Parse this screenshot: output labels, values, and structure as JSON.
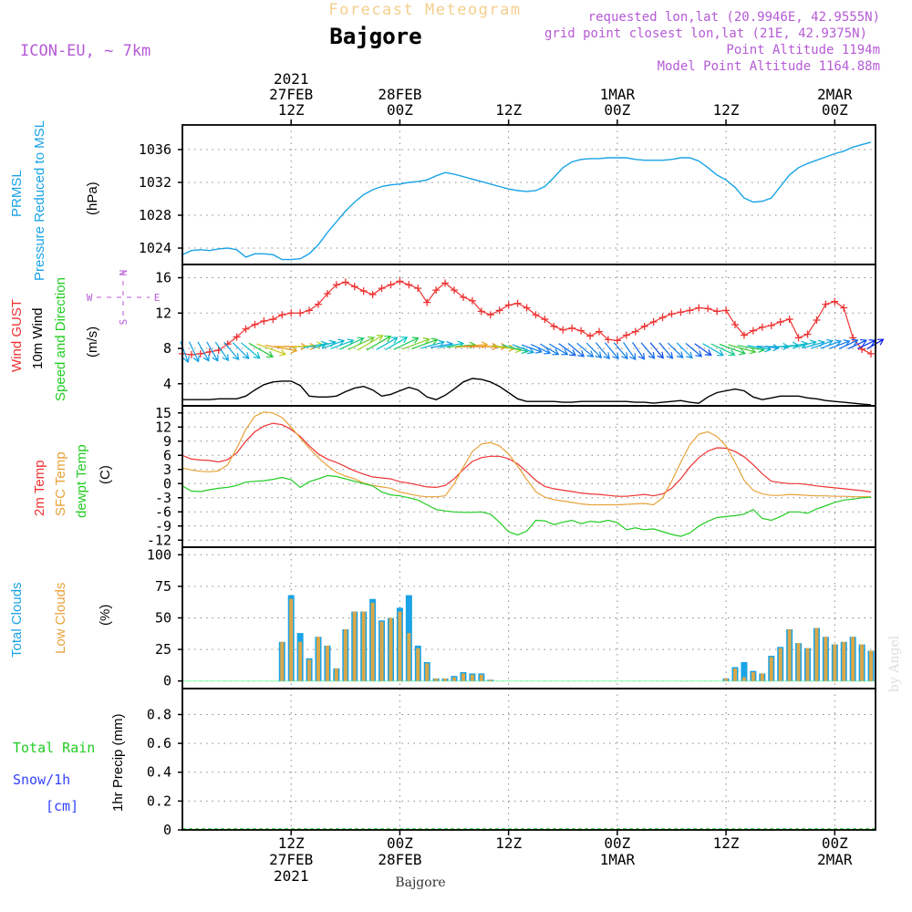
{
  "header": {
    "subtitle": "Forecast Meteogram",
    "location": "Bajgore",
    "model": "ICON-EU, ~ 7km",
    "requested": "requested lon,lat (20.9946E, 42.9555N)",
    "grid_point": "grid point closest lon,lat (21E, 42.9375N)",
    "point_alt": "Point Altitude 1194m",
    "model_alt": "Model Point Altitude 1164.88m",
    "footer_location": "Bajgore",
    "watermark": "by Angel"
  },
  "colors": {
    "pressure": "#1aa3e6",
    "gust": "#ee3333",
    "wind": "#000000",
    "temp2m": "#ee3333",
    "sfc": "#e8a23a",
    "dewpt": "#22cc22",
    "total_cloud": "#1aa3e6",
    "low_cloud": "#d9a84a",
    "rain": "#22cc22",
    "snow": "#3344ff",
    "purple": "#b65ad6"
  },
  "time_axis": {
    "top": [
      {
        "hour": 12,
        "lines": [
          "2021",
          "27FEB",
          "12Z"
        ]
      },
      {
        "hour": 24,
        "lines": [
          "28FEB",
          "00Z"
        ]
      },
      {
        "hour": 36,
        "lines": [
          "12Z"
        ]
      },
      {
        "hour": 48,
        "lines": [
          "1MAR",
          "00Z"
        ]
      },
      {
        "hour": 60,
        "lines": [
          "12Z"
        ]
      },
      {
        "hour": 72,
        "lines": [
          "2MAR",
          "00Z"
        ]
      }
    ],
    "bottom": [
      {
        "hour": 12,
        "lines": [
          "12Z",
          "27FEB",
          "2021"
        ]
      },
      {
        "hour": 24,
        "lines": [
          "00Z",
          "28FEB"
        ]
      },
      {
        "hour": 36,
        "lines": [
          "12Z"
        ]
      },
      {
        "hour": 48,
        "lines": [
          "00Z",
          "1MAR"
        ]
      },
      {
        "hour": 60,
        "lines": [
          "12Z"
        ]
      },
      {
        "hour": 72,
        "lines": [
          "00Z",
          "2MAR"
        ]
      }
    ],
    "start_hour": 0,
    "end_hour": 76.5
  },
  "chart_data": [
    {
      "type": "line",
      "panel": "pressure",
      "labels": [
        "PRMSL",
        "Pressure Reduced to MSL"
      ],
      "unit": "(hPa)",
      "ylim": [
        1022,
        1039
      ],
      "yticks": [
        1024,
        1028,
        1032,
        1036
      ],
      "x": [
        0,
        1,
        2,
        3,
        4,
        5,
        6,
        7,
        8,
        9,
        10,
        11,
        12,
        13,
        14,
        15,
        16,
        17,
        18,
        19,
        20,
        21,
        22,
        23,
        24,
        25,
        26,
        27,
        28,
        29,
        30,
        31,
        32,
        33,
        34,
        35,
        36,
        37,
        38,
        39,
        40,
        41,
        42,
        43,
        44,
        45,
        46,
        47,
        48,
        49,
        50,
        51,
        52,
        53,
        54,
        55,
        56,
        57,
        58,
        59,
        60,
        61,
        62,
        63,
        64,
        65,
        66,
        67,
        68,
        69,
        70,
        71,
        72,
        73,
        74,
        75,
        76
      ],
      "series": [
        {
          "name": "PRMSL",
          "values": [
            1023.2,
            1023.7,
            1023.8,
            1023.7,
            1023.9,
            1024.0,
            1023.8,
            1022.9,
            1023.3,
            1023.3,
            1023.2,
            1022.6,
            1022.6,
            1022.7,
            1023.3,
            1024.4,
            1025.9,
            1027.2,
            1028.5,
            1029.6,
            1030.5,
            1031.1,
            1031.5,
            1031.7,
            1031.8,
            1032.0,
            1032.1,
            1032.3,
            1032.8,
            1033.2,
            1033.0,
            1032.7,
            1032.4,
            1032.1,
            1031.8,
            1031.5,
            1031.2,
            1031.0,
            1030.9,
            1031.0,
            1031.5,
            1032.6,
            1033.8,
            1034.5,
            1034.8,
            1034.9,
            1034.9,
            1035.0,
            1035.0,
            1035.0,
            1034.8,
            1034.7,
            1034.7,
            1034.7,
            1034.8,
            1035.0,
            1035.0,
            1034.6,
            1033.8,
            1032.9,
            1032.3,
            1031.4,
            1030.1,
            1029.6,
            1029.7,
            1030.1,
            1031.5,
            1032.9,
            1033.8,
            1034.3,
            1034.7,
            1035.1,
            1035.5,
            1035.8,
            1036.3,
            1036.6,
            1036.9
          ]
        }
      ]
    },
    {
      "type": "line",
      "panel": "wind",
      "labels": [
        "Wind GUST",
        "10m Wind",
        "Speed and Direction"
      ],
      "unit": "(m/s)",
      "compass": [
        "N",
        "E",
        "S",
        "W"
      ],
      "ylim": [
        1.5,
        17.5
      ],
      "yticks": [
        4,
        8,
        12,
        16
      ],
      "x": [
        0,
        1,
        2,
        3,
        4,
        5,
        6,
        7,
        8,
        9,
        10,
        11,
        12,
        13,
        14,
        15,
        16,
        17,
        18,
        19,
        20,
        21,
        22,
        23,
        24,
        25,
        26,
        27,
        28,
        29,
        30,
        31,
        32,
        33,
        34,
        35,
        36,
        37,
        38,
        39,
        40,
        41,
        42,
        43,
        44,
        45,
        46,
        47,
        48,
        49,
        50,
        51,
        52,
        53,
        54,
        55,
        56,
        57,
        58,
        59,
        60,
        61,
        62,
        63,
        64,
        65,
        66,
        67,
        68,
        69,
        70,
        71,
        72,
        73,
        74,
        75,
        76
      ],
      "series": [
        {
          "name": "Wind GUST",
          "values": [
            7.4,
            7.3,
            7.4,
            7.6,
            7.8,
            8.5,
            9.3,
            10.2,
            10.7,
            11.1,
            11.3,
            11.8,
            12.0,
            12.0,
            12.3,
            13.0,
            14.2,
            15.2,
            15.5,
            15.0,
            14.5,
            14.1,
            14.8,
            15.2,
            15.6,
            15.2,
            14.8,
            13.2,
            14.6,
            15.4,
            14.6,
            13.8,
            13.4,
            12.2,
            11.8,
            12.3,
            12.9,
            13.1,
            12.6,
            11.8,
            11.3,
            10.5,
            10.1,
            10.3,
            10.0,
            9.4,
            9.9,
            9.0,
            8.9,
            9.5,
            9.9,
            10.5,
            11.0,
            11.5,
            11.9,
            12.1,
            12.3,
            12.6,
            12.5,
            12.2,
            12.3,
            10.7,
            9.5,
            10.0,
            10.4,
            10.6,
            11.0,
            11.3,
            9.2,
            9.6,
            11.2,
            13.0,
            13.3,
            12.6,
            9.2,
            7.9,
            7.4
          ]
        },
        {
          "name": "10m Wind",
          "values": [
            2.2,
            2.2,
            2.2,
            2.2,
            2.3,
            2.3,
            2.3,
            2.6,
            3.3,
            3.9,
            4.2,
            4.3,
            4.3,
            3.8,
            2.6,
            2.5,
            2.5,
            2.6,
            3.1,
            3.5,
            3.7,
            3.3,
            2.6,
            2.8,
            3.2,
            3.6,
            3.3,
            2.5,
            2.2,
            2.7,
            3.4,
            4.2,
            4.6,
            4.5,
            4.2,
            3.7,
            3.0,
            2.3,
            2.0,
            2.0,
            2.0,
            2.0,
            1.9,
            1.9,
            2.0,
            2.0,
            2.0,
            2.0,
            2.0,
            2.0,
            1.9,
            1.9,
            1.8,
            1.9,
            2.0,
            2.1,
            1.9,
            1.8,
            2.5,
            3.0,
            3.2,
            3.4,
            3.2,
            2.5,
            2.2,
            2.4,
            2.6,
            2.6,
            2.6,
            2.4,
            2.3,
            2.1,
            2.0,
            1.9,
            1.8,
            1.7,
            1.6
          ]
        }
      ],
      "arrow_dirs": [
        340,
        335,
        330,
        330,
        325,
        320,
        315,
        310,
        300,
        290,
        280,
        270,
        270,
        265,
        260,
        255,
        250,
        250,
        245,
        245,
        240,
        240,
        240,
        240,
        245,
        250,
        250,
        255,
        260,
        260,
        265,
        265,
        270,
        270,
        275,
        280,
        285,
        290,
        290,
        295,
        300,
        300,
        305,
        310,
        310,
        315,
        320,
        320,
        320,
        325,
        325,
        320,
        320,
        320,
        315,
        315,
        310,
        305,
        300,
        295,
        290,
        285,
        280,
        280,
        275,
        270,
        265,
        260,
        255,
        255,
        250,
        250,
        250,
        245,
        245,
        245,
        240
      ]
    },
    {
      "type": "line",
      "panel": "temperature",
      "labels": [
        "2m Temp",
        "SFC Temp",
        "dewpt Temp"
      ],
      "unit": "(C)",
      "ylim": [
        -13.5,
        16.5
      ],
      "yticks": [
        -12,
        -9,
        -6,
        -3,
        0,
        3,
        6,
        9,
        12,
        15
      ],
      "x": [
        0,
        1,
        2,
        3,
        4,
        5,
        6,
        7,
        8,
        9,
        10,
        11,
        12,
        13,
        14,
        15,
        16,
        17,
        18,
        19,
        20,
        21,
        22,
        23,
        24,
        25,
        26,
        27,
        28,
        29,
        30,
        31,
        32,
        33,
        34,
        35,
        36,
        37,
        38,
        39,
        40,
        41,
        42,
        43,
        44,
        45,
        46,
        47,
        48,
        49,
        50,
        51,
        52,
        53,
        54,
        55,
        56,
        57,
        58,
        59,
        60,
        61,
        62,
        63,
        64,
        65,
        66,
        67,
        68,
        69,
        70,
        71,
        72,
        73,
        74,
        75,
        76
      ],
      "series": [
        {
          "name": "2m Temp",
          "values": [
            6.0,
            5.2,
            5.0,
            4.9,
            4.6,
            5.1,
            6.5,
            9.0,
            11.0,
            12.2,
            12.8,
            12.5,
            11.5,
            10.0,
            8.0,
            6.3,
            5.2,
            4.5,
            3.6,
            2.7,
            2.0,
            1.4,
            1.2,
            1.0,
            0.4,
            0.1,
            -0.3,
            -0.7,
            -0.8,
            -0.4,
            1.0,
            3.0,
            4.7,
            5.5,
            5.8,
            5.8,
            5.3,
            4.2,
            2.5,
            0.7,
            -0.6,
            -1.1,
            -1.4,
            -1.7,
            -2.0,
            -2.2,
            -2.3,
            -2.5,
            -2.7,
            -2.7,
            -2.5,
            -2.3,
            -2.6,
            -2.2,
            -1.0,
            1.0,
            3.5,
            5.5,
            6.9,
            7.6,
            7.5,
            6.8,
            5.7,
            4.0,
            2.1,
            0.5,
            0.2,
            0.0,
            0.0,
            -0.2,
            -0.5,
            -0.7,
            -0.9,
            -1.1,
            -1.3,
            -1.5,
            -1.8
          ]
        },
        {
          "name": "SFC Temp",
          "values": [
            3.3,
            2.9,
            2.6,
            2.5,
            2.7,
            4.0,
            7.5,
            11.5,
            14.3,
            15.2,
            15.0,
            14.0,
            12.0,
            9.7,
            7.5,
            5.5,
            3.8,
            2.4,
            1.6,
            1.0,
            0.1,
            -0.4,
            -0.7,
            -1.0,
            -1.8,
            -2.2,
            -2.6,
            -2.8,
            -2.8,
            -2.6,
            0.0,
            3.5,
            6.8,
            8.4,
            8.7,
            8.0,
            6.3,
            3.7,
            0.9,
            -1.7,
            -2.9,
            -3.4,
            -3.7,
            -4.0,
            -4.3,
            -4.5,
            -4.5,
            -4.5,
            -4.5,
            -4.4,
            -4.3,
            -4.2,
            -4.5,
            -3.0,
            0.5,
            4.5,
            8.2,
            10.5,
            11.0,
            10.0,
            8.0,
            4.5,
            0.7,
            -1.4,
            -2.2,
            -2.5,
            -2.5,
            -2.3,
            -2.4,
            -2.5,
            -2.6,
            -2.6,
            -2.7,
            -2.7,
            -2.8,
            -2.8,
            -2.8
          ]
        },
        {
          "name": "dewpt Temp",
          "values": [
            -0.5,
            -1.6,
            -1.7,
            -1.3,
            -1.0,
            -0.8,
            -0.4,
            0.3,
            0.5,
            0.6,
            0.9,
            1.3,
            0.8,
            -0.8,
            0.4,
            1.0,
            1.7,
            1.5,
            1.0,
            0.5,
            0.0,
            -0.5,
            -1.8,
            -2.4,
            -2.6,
            -3.0,
            -3.5,
            -4.5,
            -5.5,
            -5.8,
            -6.0,
            -6.1,
            -6.1,
            -6.0,
            -6.5,
            -8.2,
            -10.2,
            -10.9,
            -10.1,
            -7.8,
            -7.9,
            -8.7,
            -8.2,
            -7.8,
            -8.5,
            -8.0,
            -8.2,
            -7.8,
            -8.3,
            -9.8,
            -9.4,
            -9.8,
            -9.6,
            -10.2,
            -10.8,
            -11.2,
            -10.5,
            -9.0,
            -8.0,
            -7.2,
            -7.0,
            -6.8,
            -6.5,
            -5.5,
            -7.4,
            -7.8,
            -7.0,
            -6.0,
            -6.0,
            -6.3,
            -5.4,
            -4.7,
            -4.0,
            -3.5,
            -3.3,
            -3.0,
            -2.9
          ]
        }
      ]
    },
    {
      "type": "bar",
      "panel": "clouds",
      "labels": [
        "Total Clouds",
        "Low Clouds"
      ],
      "unit": "(%)",
      "ylim": [
        -6,
        106
      ],
      "yticks": [
        0,
        25,
        50,
        75,
        100
      ],
      "x": [
        11,
        12,
        13,
        14,
        15,
        16,
        17,
        18,
        19,
        20,
        21,
        22,
        23,
        24,
        25,
        26,
        27,
        28,
        29,
        30,
        31,
        32,
        33,
        34,
        35,
        60,
        61,
        62,
        63,
        64,
        65,
        66,
        67,
        68,
        69,
        70,
        71,
        72,
        73,
        74,
        75,
        76
      ],
      "series": [
        {
          "name": "Total Clouds",
          "values": [
            31,
            68,
            38,
            18,
            35,
            28,
            10,
            41,
            55,
            55,
            65,
            48,
            50,
            58,
            68,
            28,
            15,
            2,
            2,
            4,
            7,
            6,
            6,
            1,
            0,
            2,
            11,
            15,
            8,
            6,
            20,
            27,
            41,
            30,
            26,
            42,
            35,
            29,
            31,
            35,
            29,
            24
          ]
        },
        {
          "name": "Low Clouds",
          "values": [
            31,
            65,
            31,
            17,
            35,
            28,
            10,
            41,
            55,
            55,
            62,
            47,
            50,
            55,
            38,
            26,
            14,
            2,
            2,
            3,
            6,
            5,
            5,
            1,
            0,
            2,
            10,
            3,
            7,
            6,
            19,
            26,
            41,
            30,
            26,
            42,
            35,
            29,
            31,
            35,
            29,
            24
          ]
        }
      ]
    },
    {
      "type": "line",
      "panel": "precip",
      "labels": [
        "Total Rain",
        "Snow/1h",
        "[cm]"
      ],
      "unit": "1hr Precip (mm)",
      "ylim": [
        0,
        0.98
      ],
      "yticks": [
        0,
        0.2,
        0.4,
        0.6,
        0.8
      ],
      "x": [
        0,
        76.5
      ],
      "series": [
        {
          "name": "Total Rain",
          "values": [
            0,
            0
          ]
        },
        {
          "name": "Snow/1h",
          "values": [
            0,
            0
          ]
        }
      ]
    }
  ]
}
